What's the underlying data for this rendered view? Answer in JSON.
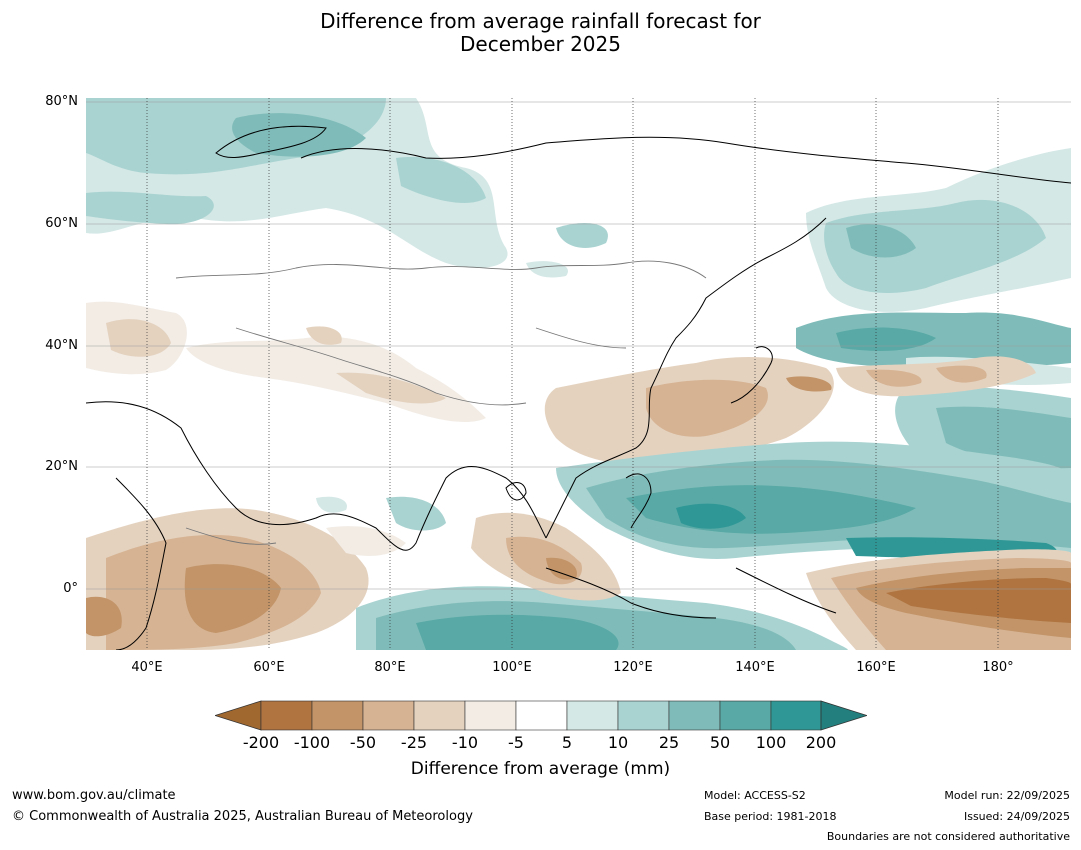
{
  "title": {
    "line1": "Difference from average rainfall forecast for",
    "line2": "December 2025"
  },
  "map": {
    "lat_labels": [
      "80°N",
      "60°N",
      "40°N",
      "20°N",
      "0°"
    ],
    "lon_labels": [
      "40°E",
      "60°E",
      "80°E",
      "100°E",
      "120°E",
      "140°E",
      "160°E",
      "180°"
    ],
    "lon_range_deg": [
      30,
      192
    ],
    "lat_range_deg": [
      -10,
      81
    ],
    "overlays": [
      "land-coastlines",
      "country-boundaries",
      "graticule"
    ]
  },
  "colorbar": {
    "ticks": [
      "-200",
      "-100",
      "-50",
      "-25",
      "-10",
      "-5",
      "5",
      "10",
      "25",
      "50",
      "100",
      "200"
    ],
    "colors": [
      "#a0672f",
      "#af7440",
      "#c29468",
      "#d6b393",
      "#e4d2bf",
      "#f2ece5",
      "#ffffff",
      "#d4e8e6",
      "#a9d3d1",
      "#7fbcb9",
      "#59a9a6",
      "#2f9896",
      "#227f7d"
    ],
    "label": "Difference from average (mm)"
  },
  "footer": {
    "website": "www.bom.gov.au/climate",
    "copyright": "© Commonwealth of Australia 2025, Australian Bureau of Meteorology",
    "model": "Model: ACCESS-S2",
    "base_period": "Base period: 1981-2018",
    "model_run": "Model run: 22/09/2025",
    "issued": "Issued: 24/09/2025",
    "disclaimer": "Boundaries are not considered authoritative"
  }
}
